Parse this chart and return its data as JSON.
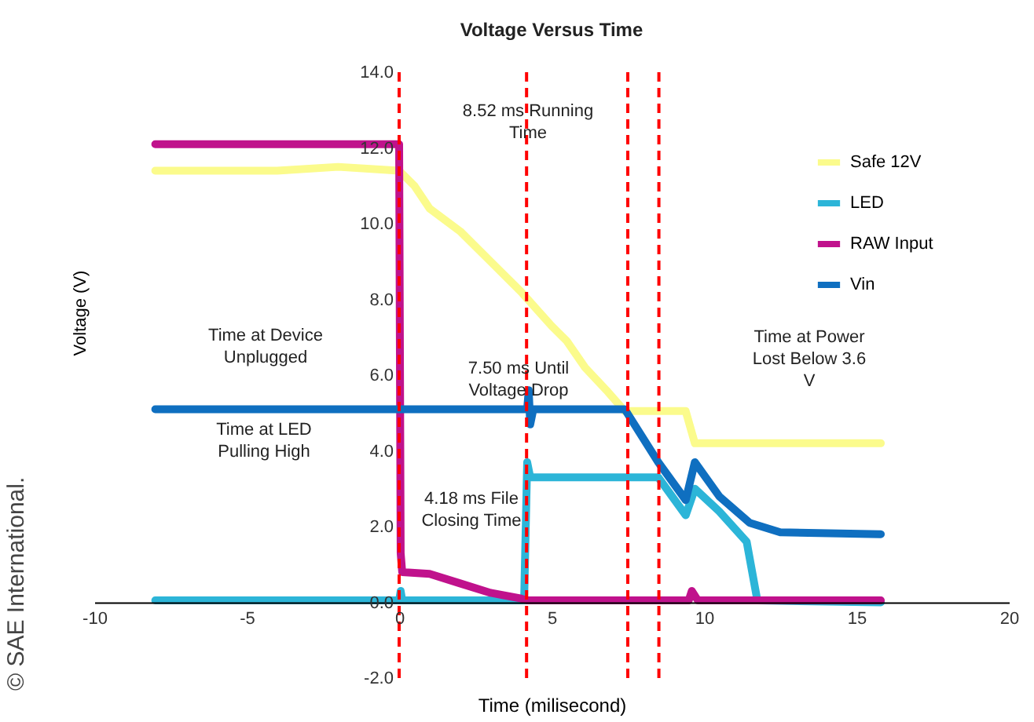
{
  "chart_data": {
    "type": "line",
    "title": "Voltage Versus Time",
    "xlabel": "Time (milisecond)",
    "ylabel": "Voltage (V)",
    "xlim": [
      -10,
      20
    ],
    "xticks": [
      -10,
      -5,
      0,
      5,
      10,
      15,
      20
    ],
    "ylim": [
      -2,
      14
    ],
    "yticks": [
      {
        "value": -2,
        "label": "-2.0"
      },
      {
        "value": 0,
        "label": "0.0"
      },
      {
        "value": 2,
        "label": "2.0"
      },
      {
        "value": 4,
        "label": "4.0"
      },
      {
        "value": 6,
        "label": "6.0"
      },
      {
        "value": 8,
        "label": "8.0"
      },
      {
        "value": 10,
        "label": "10.0"
      },
      {
        "value": 12,
        "label": "12.0"
      },
      {
        "value": 14,
        "label": "14.0"
      }
    ],
    "legend": "top right",
    "series": [
      {
        "name": "Safe 12V",
        "color": "#fbfb8c",
        "x": [
          -8,
          -4,
          -2,
          0,
          0.5,
          1,
          2,
          3,
          4,
          5,
          5.5,
          6.1,
          6.8,
          7.4,
          9.4,
          9.7,
          15.8
        ],
        "values": [
          11.4,
          11.4,
          11.5,
          11.4,
          11.0,
          10.4,
          9.8,
          9.0,
          8.2,
          7.3,
          6.9,
          6.2,
          5.6,
          5.05,
          5.05,
          4.2,
          4.2
        ]
      },
      {
        "name": "LED",
        "color": "#2cb5d8",
        "x": [
          -8,
          0,
          0.05,
          0.1,
          4.1,
          4.2,
          4.3,
          8.5,
          9.4,
          9.7,
          10.5,
          11.4,
          11.75,
          15.8
        ],
        "values": [
          0.05,
          0.05,
          0.3,
          0.05,
          0.05,
          3.7,
          3.3,
          3.3,
          2.3,
          3.0,
          2.4,
          1.6,
          0.05,
          0.0
        ]
      },
      {
        "name": "RAW Input",
        "color": "#c0128c",
        "x": [
          -8,
          0,
          0.05,
          0.1,
          1,
          2,
          3,
          4,
          4.2,
          9.5,
          9.6,
          9.8,
          15.8
        ],
        "values": [
          12.1,
          12.1,
          1.3,
          0.8,
          0.75,
          0.5,
          0.25,
          0.1,
          0.05,
          0.05,
          0.3,
          0.05,
          0.05
        ]
      },
      {
        "name": "Vin",
        "color": "#0f6fc0",
        "x": [
          -8,
          0,
          4.2,
          4.25,
          4.3,
          4.4,
          7.4,
          8.5,
          9.4,
          9.7,
          10.5,
          11.5,
          12.5,
          15.8
        ],
        "values": [
          5.1,
          5.1,
          5.1,
          5.6,
          4.7,
          5.1,
          5.1,
          3.7,
          2.7,
          3.7,
          2.8,
          2.1,
          1.85,
          1.8
        ]
      }
    ],
    "ref_lines": [
      {
        "axis": "x",
        "value": 0,
        "color": "#ff0000",
        "line_style": "dashed"
      },
      {
        "axis": "x",
        "value": 4.18,
        "color": "#ff0000",
        "line_style": "dashed"
      },
      {
        "axis": "x",
        "value": 7.5,
        "color": "#ff0000",
        "line_style": "dashed"
      },
      {
        "axis": "x",
        "value": 8.52,
        "color": "#ff0000",
        "line_style": "dashed"
      }
    ],
    "annotations": [
      "8.52 ms Running Time",
      "Time at Device Unplugged",
      "7.50 ms Until Voltage Drop",
      "Time at Power Lost Below 3.6 V",
      "Time at LED Pulling High",
      "4.18 ms File Closing Time",
      "© SAE International."
    ]
  }
}
